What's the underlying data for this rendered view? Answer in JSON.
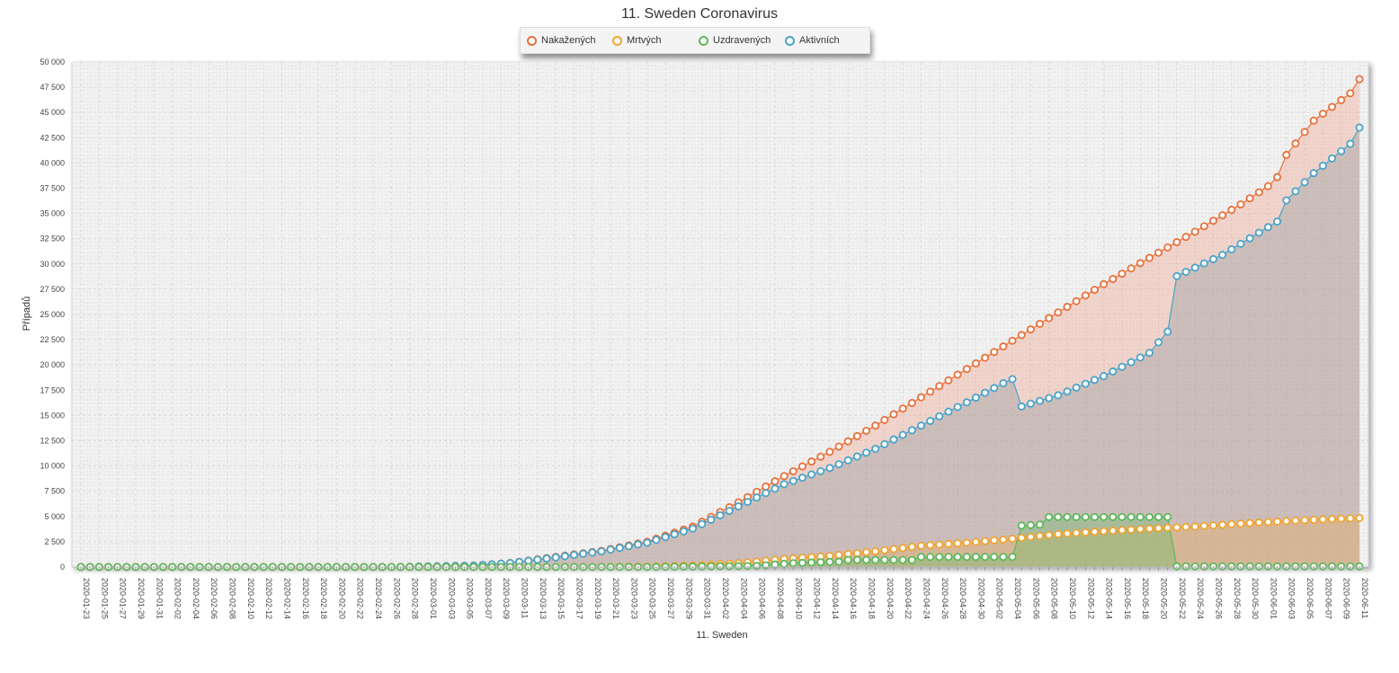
{
  "chart_data": {
    "type": "area",
    "title": "11. Sweden Coronavirus",
    "xlabel": "11. Sweden",
    "ylabel": "Případů",
    "ylim": [
      0,
      50000
    ],
    "yticks": [
      0,
      2500,
      5000,
      7500,
      10000,
      12500,
      15000,
      17500,
      20000,
      22500,
      25000,
      27500,
      30000,
      32500,
      35000,
      37500,
      40000,
      42500,
      45000,
      47500,
      50000
    ],
    "ytick_labels": [
      "0",
      "2 500",
      "5 000",
      "7 500",
      "10 000",
      "12 500",
      "15 000",
      "17 500",
      "20 000",
      "22 500",
      "25 000",
      "27 500",
      "30 000",
      "32 500",
      "35 000",
      "37 500",
      "40 000",
      "42 500",
      "45 000",
      "47 500",
      "50 000"
    ],
    "x_start": "2020-01-23",
    "x_end": "2020-06-11",
    "x_tick_step_days": 2,
    "grid": true,
    "legend_position": "top-center",
    "series": [
      {
        "name": "Nakažených",
        "color": "#e8703a",
        "knots": [
          [
            "2020-01-23",
            0
          ],
          [
            "2020-02-26",
            1
          ],
          [
            "2020-03-06",
            140
          ],
          [
            "2020-03-10",
            400
          ],
          [
            "2020-03-15",
            1000
          ],
          [
            "2020-03-20",
            1600
          ],
          [
            "2020-03-25",
            2500
          ],
          [
            "2020-03-30",
            4000
          ],
          [
            "2020-04-04",
            6400
          ],
          [
            "2020-04-09",
            9000
          ],
          [
            "2020-04-14",
            11400
          ],
          [
            "2020-04-19",
            14000
          ],
          [
            "2020-04-24",
            16800
          ],
          [
            "2020-04-29",
            19600
          ],
          [
            "2020-05-04",
            22400
          ],
          [
            "2020-05-09",
            25200
          ],
          [
            "2020-05-14",
            28000
          ],
          [
            "2020-05-19",
            30600
          ],
          [
            "2020-05-24",
            33200
          ],
          [
            "2020-05-29",
            35900
          ],
          [
            "2020-06-01",
            37700
          ],
          [
            "2020-06-02",
            38600
          ],
          [
            "2020-06-03",
            40800
          ],
          [
            "2020-06-06",
            44200
          ],
          [
            "2020-06-10",
            46900
          ],
          [
            "2020-06-11",
            48300
          ]
        ]
      },
      {
        "name": "Mrtvých",
        "color": "#f0a430",
        "knots": [
          [
            "2020-01-23",
            0
          ],
          [
            "2020-03-10",
            0
          ],
          [
            "2020-03-20",
            15
          ],
          [
            "2020-03-25",
            50
          ],
          [
            "2020-03-30",
            150
          ],
          [
            "2020-04-04",
            370
          ],
          [
            "2020-04-09",
            800
          ],
          [
            "2020-04-14",
            1100
          ],
          [
            "2020-04-19",
            1550
          ],
          [
            "2020-04-24",
            2100
          ],
          [
            "2020-04-29",
            2400
          ],
          [
            "2020-05-04",
            2800
          ],
          [
            "2020-05-09",
            3250
          ],
          [
            "2020-05-14",
            3550
          ],
          [
            "2020-05-19",
            3800
          ],
          [
            "2020-05-24",
            4000
          ],
          [
            "2020-05-29",
            4300
          ],
          [
            "2020-06-03",
            4550
          ],
          [
            "2020-06-08",
            4750
          ],
          [
            "2020-06-11",
            4850
          ]
        ]
      },
      {
        "name": "Uzdravených",
        "color": "#5cb85c",
        "knots": [
          [
            "2020-01-23",
            0
          ],
          [
            "2020-03-25",
            0
          ],
          [
            "2020-04-06",
            100
          ],
          [
            "2020-04-10",
            380
          ],
          [
            "2020-04-14",
            500
          ],
          [
            "2020-04-15",
            520
          ],
          [
            "2020-04-16",
            700
          ],
          [
            "2020-04-22",
            700
          ],
          [
            "2020-04-23",
            690
          ],
          [
            "2020-04-24",
            1000
          ],
          [
            "2020-05-04",
            1000
          ],
          [
            "2020-05-05",
            4100
          ],
          [
            "2020-05-07",
            4200
          ],
          [
            "2020-05-08",
            4950
          ],
          [
            "2020-05-21",
            4950
          ],
          [
            "2020-05-22",
            60
          ],
          [
            "2020-06-11",
            60
          ]
        ]
      },
      {
        "name": "Aktivních",
        "color": "#4aa3c8",
        "knots": [
          [
            "2020-01-23",
            0
          ],
          [
            "2020-02-26",
            1
          ],
          [
            "2020-03-06",
            140
          ],
          [
            "2020-03-10",
            390
          ],
          [
            "2020-03-15",
            950
          ],
          [
            "2020-03-20",
            1550
          ],
          [
            "2020-03-25",
            2400
          ],
          [
            "2020-03-30",
            3800
          ],
          [
            "2020-04-04",
            6000
          ],
          [
            "2020-04-09",
            8200
          ],
          [
            "2020-04-14",
            9800
          ],
          [
            "2020-04-19",
            11700
          ],
          [
            "2020-04-24",
            14000
          ],
          [
            "2020-04-29",
            16300
          ],
          [
            "2020-05-03",
            18200
          ],
          [
            "2020-05-04",
            18600
          ],
          [
            "2020-05-05",
            15900
          ],
          [
            "2020-05-09",
            17000
          ],
          [
            "2020-05-14",
            18900
          ],
          [
            "2020-05-19",
            21200
          ],
          [
            "2020-05-21",
            23300
          ],
          [
            "2020-05-22",
            28800
          ],
          [
            "2020-05-27",
            30900
          ],
          [
            "2020-06-02",
            34200
          ],
          [
            "2020-06-03",
            36300
          ],
          [
            "2020-06-06",
            39000
          ],
          [
            "2020-06-10",
            41900
          ],
          [
            "2020-06-11",
            43500
          ]
        ]
      }
    ]
  }
}
